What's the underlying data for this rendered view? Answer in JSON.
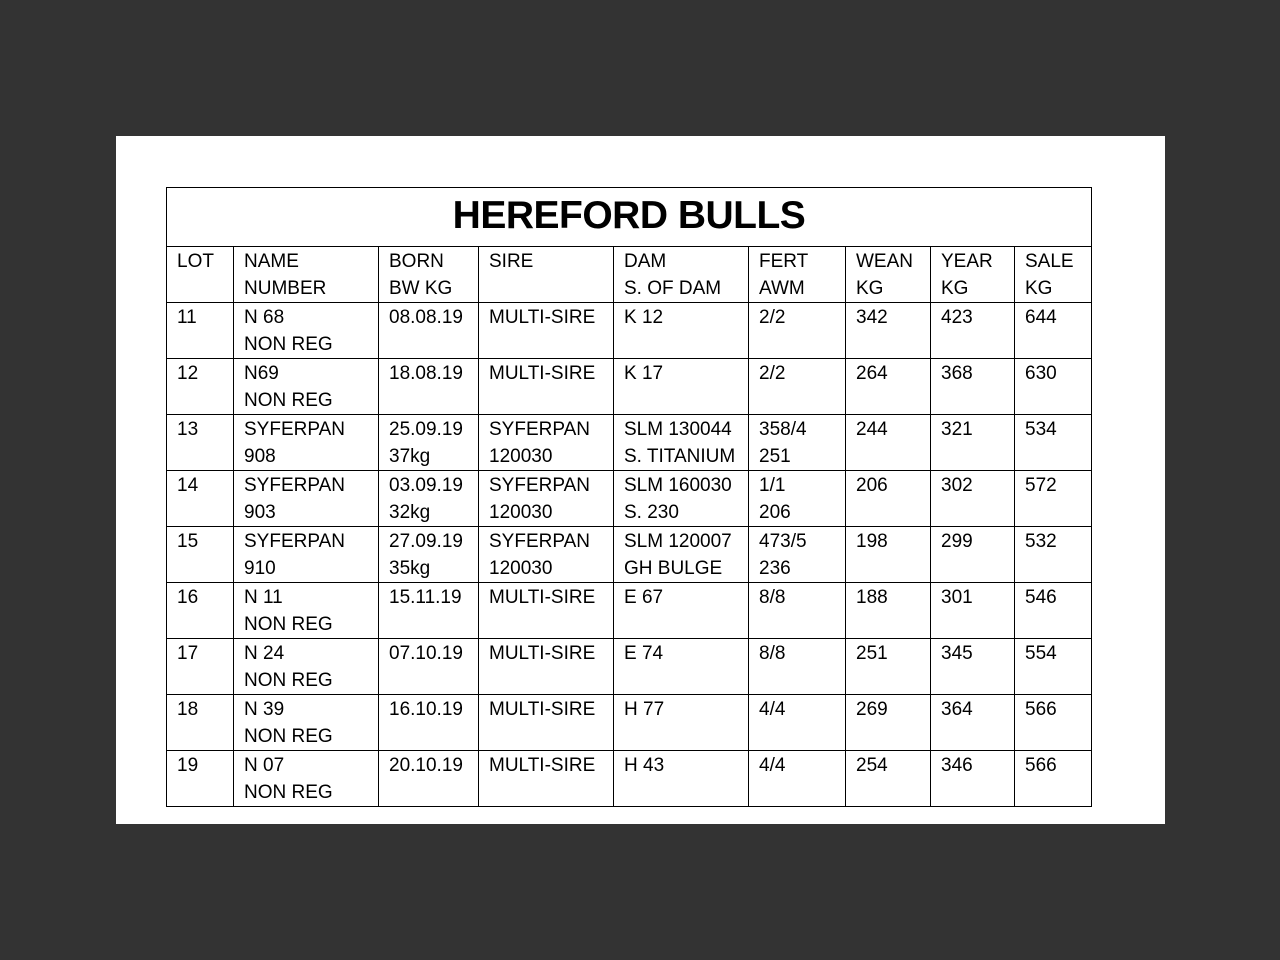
{
  "title": "HEREFORD BULLS",
  "columns": [
    [
      "LOT",
      ""
    ],
    [
      "NAME",
      "NUMBER"
    ],
    [
      "BORN",
      "BW KG"
    ],
    [
      "SIRE",
      ""
    ],
    [
      "DAM",
      "S. OF DAM"
    ],
    [
      "FERT",
      "AWM"
    ],
    [
      "WEAN",
      "KG"
    ],
    [
      "YEAR",
      "KG"
    ],
    [
      "SALE",
      "KG"
    ]
  ],
  "rows": [
    [
      [
        "11",
        ""
      ],
      [
        "N 68",
        "NON REG"
      ],
      [
        "08.08.19",
        ""
      ],
      [
        "MULTI-SIRE",
        ""
      ],
      [
        "K 12",
        ""
      ],
      [
        "2/2",
        ""
      ],
      [
        "342",
        ""
      ],
      [
        "423",
        ""
      ],
      [
        "644",
        ""
      ]
    ],
    [
      [
        "12",
        ""
      ],
      [
        "N69",
        "NON REG"
      ],
      [
        "18.08.19",
        ""
      ],
      [
        "MULTI-SIRE",
        ""
      ],
      [
        "K 17",
        ""
      ],
      [
        "2/2",
        ""
      ],
      [
        "264",
        ""
      ],
      [
        "368",
        ""
      ],
      [
        "630",
        ""
      ]
    ],
    [
      [
        "13",
        ""
      ],
      [
        "SYFERPAN",
        "908"
      ],
      [
        "25.09.19",
        "37kg"
      ],
      [
        "SYFERPAN",
        "120030"
      ],
      [
        "SLM 130044",
        "S. TITANIUM"
      ],
      [
        "358/4",
        "251"
      ],
      [
        "244",
        ""
      ],
      [
        "321",
        ""
      ],
      [
        "534",
        ""
      ]
    ],
    [
      [
        "14",
        ""
      ],
      [
        "SYFERPAN",
        "903"
      ],
      [
        "03.09.19",
        "32kg"
      ],
      [
        "SYFERPAN",
        "120030"
      ],
      [
        "SLM 160030",
        "S. 230"
      ],
      [
        "1/1",
        "206"
      ],
      [
        "206",
        ""
      ],
      [
        "302",
        ""
      ],
      [
        "572",
        ""
      ]
    ],
    [
      [
        "15",
        ""
      ],
      [
        "SYFERPAN",
        "910"
      ],
      [
        "27.09.19",
        "35kg"
      ],
      [
        "SYFERPAN",
        "120030"
      ],
      [
        "SLM 120007",
        "GH BULGE"
      ],
      [
        "473/5",
        "236"
      ],
      [
        "198",
        ""
      ],
      [
        "299",
        ""
      ],
      [
        "532",
        ""
      ]
    ],
    [
      [
        "16",
        ""
      ],
      [
        "N 11",
        "NON REG"
      ],
      [
        "15.11.19",
        ""
      ],
      [
        "MULTI-SIRE",
        ""
      ],
      [
        "E 67",
        ""
      ],
      [
        "8/8",
        ""
      ],
      [
        "188",
        ""
      ],
      [
        "301",
        ""
      ],
      [
        "546",
        ""
      ]
    ],
    [
      [
        "17",
        ""
      ],
      [
        "N 24",
        "NON REG"
      ],
      [
        "07.10.19",
        ""
      ],
      [
        "MULTI-SIRE",
        ""
      ],
      [
        "E 74",
        ""
      ],
      [
        "8/8",
        ""
      ],
      [
        "251",
        ""
      ],
      [
        "345",
        ""
      ],
      [
        "554",
        ""
      ]
    ],
    [
      [
        "18",
        ""
      ],
      [
        "N 39",
        "NON REG"
      ],
      [
        "16.10.19",
        ""
      ],
      [
        "MULTI-SIRE",
        ""
      ],
      [
        "H 77",
        ""
      ],
      [
        "4/4",
        ""
      ],
      [
        "269",
        ""
      ],
      [
        "364",
        ""
      ],
      [
        "566",
        ""
      ]
    ],
    [
      [
        "19",
        ""
      ],
      [
        "N 07",
        "NON REG"
      ],
      [
        "20.10.19",
        ""
      ],
      [
        "MULTI-SIRE",
        ""
      ],
      [
        "H 43",
        ""
      ],
      [
        "4/4",
        ""
      ],
      [
        "254",
        ""
      ],
      [
        "346",
        ""
      ],
      [
        "566",
        ""
      ]
    ]
  ]
}
